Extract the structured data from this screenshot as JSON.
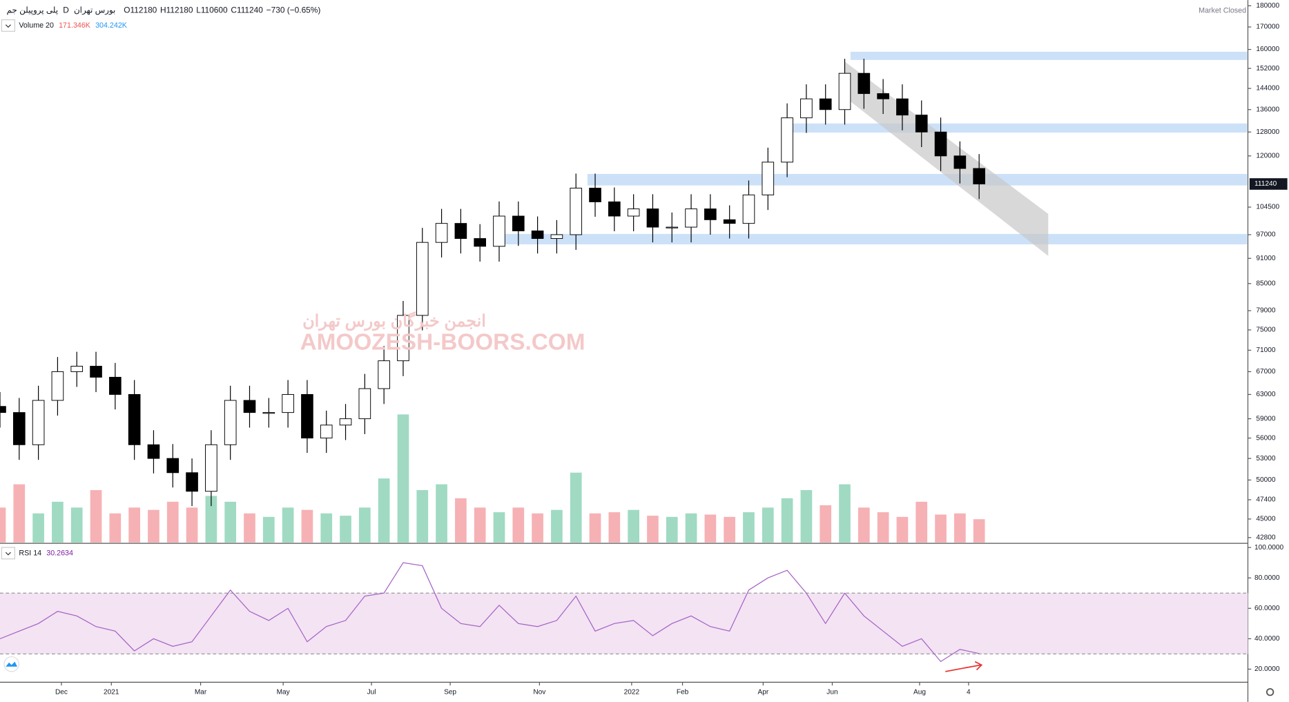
{
  "chart_data": {
    "type": "candlestick",
    "header": {
      "symbol": "پلی پروپیلن جم",
      "interval": "D",
      "exchange": "بورس تهران",
      "ohlc": [
        "O112180",
        "H112180",
        "L110600",
        "C111240",
        "−730 (−0.65%)"
      ],
      "status": "Market Closed"
    },
    "watermark": [
      "انجمن خبرگان بورس تهران",
      "AMOOZESH-BOORS.COM"
    ],
    "log_scale": true,
    "x": [
      0,
      2,
      4,
      6,
      8,
      10,
      12,
      14,
      16,
      18,
      20,
      22,
      24,
      26,
      28,
      30,
      32,
      34,
      36,
      38,
      40,
      42,
      44,
      46,
      48,
      50,
      52,
      54,
      56,
      58,
      60,
      62,
      64,
      66,
      68,
      70,
      72,
      74,
      76,
      78,
      80,
      82,
      84,
      86,
      88,
      90,
      92,
      94,
      96,
      98,
      100,
      102
    ],
    "open": [
      61000,
      60000,
      55000,
      62000,
      67000,
      68000,
      66000,
      63000,
      55000,
      53000,
      51000,
      48500,
      55000,
      62000,
      60000,
      60000,
      63000,
      56000,
      58000,
      59000,
      64000,
      69000,
      78000,
      95000,
      100000,
      96000,
      94000,
      102000,
      98000,
      96000,
      97000,
      110000,
      106000,
      102000,
      104000,
      99000,
      99000,
      104000,
      101000,
      100000,
      108000,
      118000,
      133000,
      140000,
      136000,
      150000,
      142000,
      140000,
      134000,
      128000,
      120000,
      116000
    ],
    "high": [
      63400,
      62400,
      64500,
      69700,
      70700,
      70700,
      68600,
      65500,
      57200,
      55100,
      53000,
      57200,
      64500,
      64500,
      62400,
      65500,
      65500,
      60300,
      61400,
      66600,
      71800,
      81100,
      98800,
      104000,
      104000,
      99800,
      106100,
      106100,
      101900,
      100900,
      114400,
      114400,
      110200,
      108200,
      108200,
      103000,
      108200,
      108200,
      105000,
      112300,
      122700,
      138300,
      145600,
      145600,
      156000,
      156000,
      147700,
      145600,
      139400,
      133100,
      124800,
      120600
    ],
    "low": [
      57600,
      52800,
      52800,
      59500,
      64300,
      63400,
      60500,
      52800,
      50900,
      49000,
      46600,
      46600,
      52800,
      57600,
      57600,
      57600,
      53800,
      53800,
      55700,
      56600,
      61400,
      66200,
      74900,
      91200,
      92200,
      90200,
      90200,
      94100,
      92200,
      92200,
      93100,
      101800,
      97900,
      97900,
      95000,
      95000,
      95000,
      97000,
      96000,
      96000,
      103700,
      113300,
      127700,
      130600,
      130600,
      136300,
      134400,
      128600,
      122900,
      115200,
      111400,
      106800
    ],
    "close": [
      60000,
      55000,
      62000,
      67000,
      68000,
      66000,
      63000,
      55000,
      53000,
      51000,
      48500,
      55000,
      62000,
      60000,
      60000,
      63000,
      56000,
      58000,
      59000,
      64000,
      69000,
      78000,
      95000,
      100000,
      96000,
      94000,
      102000,
      98000,
      96000,
      97000,
      110000,
      106000,
      102000,
      104000,
      99000,
      99000,
      104000,
      101000,
      100000,
      108000,
      118000,
      133000,
      140000,
      136000,
      150000,
      142000,
      140000,
      134000,
      128000,
      120000,
      116000,
      111240
    ],
    "up_color": "#ffffff",
    "down_color": "#000000",
    "wick_color": "#000000",
    "xlim": [
      0,
      130
    ],
    "xticks": [
      {
        "value": 6.4,
        "label": "Dec"
      },
      {
        "value": 11.6,
        "label": "2021"
      },
      {
        "value": 20.9,
        "label": "Mar"
      },
      {
        "value": 29.5,
        "label": "May"
      },
      {
        "value": 38.7,
        "label": "Jul"
      },
      {
        "value": 46.9,
        "label": "Sep"
      },
      {
        "value": 56.2,
        "label": "Nov"
      },
      {
        "value": 65.8,
        "label": "2022"
      },
      {
        "value": 71.1,
        "label": "Feb"
      },
      {
        "value": 79.5,
        "label": "Apr"
      },
      {
        "value": 86.7,
        "label": "Jun"
      },
      {
        "value": 95.8,
        "label": "Aug"
      },
      {
        "value": 100.9,
        "label": "4"
      }
    ],
    "ylim": [
      42234,
      182820
    ],
    "yticks": [
      180000,
      170000,
      160000,
      152000,
      144000,
      136000,
      128000,
      120000,
      104500,
      97000,
      91000,
      85000,
      79000,
      75000,
      71000,
      67000,
      63000,
      59000,
      56000,
      53000,
      50000,
      47400,
      45000,
      42800
    ],
    "zones": [
      {
        "from": 88.6,
        "low": 155500,
        "high": 159000
      },
      {
        "from": 81.8,
        "low": 127800,
        "high": 131000
      },
      {
        "from": 61.2,
        "low": 110800,
        "high": 114300
      },
      {
        "from": 51.4,
        "low": 94500,
        "high": 97200
      }
    ],
    "zone_color": "#bbd7f5",
    "channel": {
      "x": [
        88,
        109.2
      ],
      "upper": [
        154800,
        102600
      ],
      "lower": [
        140700,
        91600
      ],
      "color": "#c8c8c8"
    },
    "volume": {
      "label": "Volume 20",
      "value_label": "171.346K",
      "ma_label": "304.242K",
      "values": [
        300000,
        500000,
        250000,
        350000,
        300000,
        450000,
        250000,
        300000,
        280000,
        350000,
        300000,
        400000,
        350000,
        250000,
        220000,
        300000,
        280000,
        250000,
        230000,
        300000,
        550000,
        1100000,
        450000,
        500000,
        380000,
        300000,
        260000,
        300000,
        250000,
        280000,
        600000,
        250000,
        260000,
        280000,
        230000,
        220000,
        250000,
        240000,
        220000,
        260000,
        300000,
        380000,
        450000,
        320000,
        500000,
        300000,
        260000,
        220000,
        350000,
        240000,
        250000,
        200000
      ],
      "ylim": [
        0,
        1200000
      ],
      "up_color": "#8fd3b8",
      "down_color": "#f4a3a8"
    },
    "rsi": {
      "label": "RSI 14",
      "value_label": "30.2634",
      "color": "#a35fc4",
      "band": [
        30,
        70
      ],
      "band_color": "#f3e3f3",
      "values": [
        40,
        45,
        50,
        58,
        55,
        48,
        45,
        32,
        40,
        35,
        38,
        55,
        72,
        58,
        52,
        60,
        38,
        48,
        52,
        68,
        70,
        90,
        88,
        60,
        50,
        48,
        62,
        50,
        48,
        52,
        68,
        45,
        50,
        52,
        42,
        50,
        55,
        48,
        45,
        72,
        80,
        85,
        70,
        50,
        70,
        55,
        45,
        35,
        40,
        25,
        33,
        30.2634
      ],
      "ylim": [
        11.4,
        102.2
      ],
      "yticks": [
        {
          "value": 100,
          "label": "100.0000"
        },
        {
          "value": 80,
          "label": "80.0000"
        },
        {
          "value": 60,
          "label": "60.0000"
        },
        {
          "value": 40,
          "label": "40.0000"
        },
        {
          "value": 20,
          "label": "20.0000"
        }
      ]
    }
  }
}
